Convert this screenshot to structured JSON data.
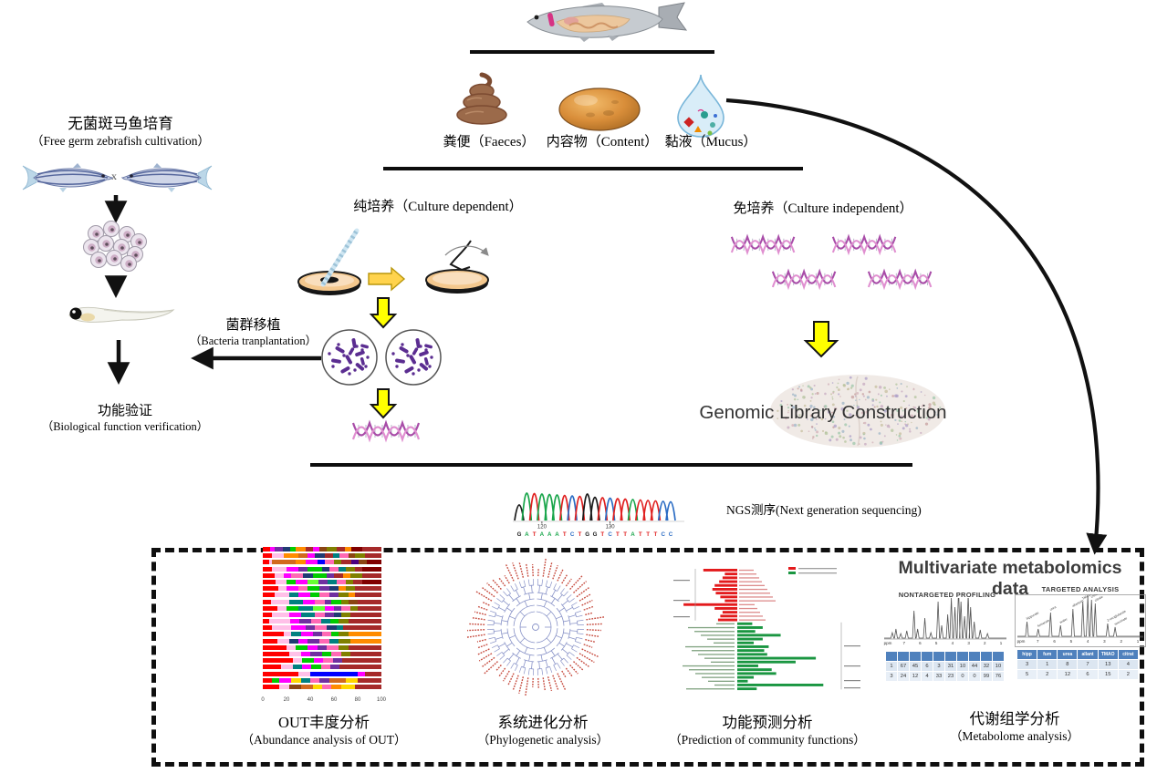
{
  "top": {
    "samples": [
      {
        "label": "粪便（Faeces）"
      },
      {
        "label": "内容物（Content）"
      },
      {
        "label": "黏液（Mucus）"
      }
    ]
  },
  "left_flow": {
    "title_cn": "无菌斑马鱼培育",
    "title_en": "（Free germ zebrafish cultivation）",
    "cross": "x",
    "transplant_cn": "菌群移植",
    "transplant_en": "（Bacteria tranplantation）",
    "verify_cn": "功能验证",
    "verify_en": "（Biological function verification）"
  },
  "culture_dependent": {
    "label": "纯培养（Culture dependent）"
  },
  "culture_independent": {
    "label": "免培养（Culture independent）",
    "library_label": "Genomic Library Construction"
  },
  "ngs": {
    "label": "NGS测序(Next generation  sequencing)",
    "sequence": "GATAAATCTGGTCTTATTTCC",
    "base_colors": {
      "G": "#1a1a1a",
      "A": "#18a54a",
      "T": "#e02020",
      "C": "#2b6cc4"
    },
    "ticks": [
      {
        "label": "120",
        "index": 3
      },
      {
        "label": "130",
        "index": 12
      }
    ]
  },
  "analysis_panels": [
    {
      "title_cn": "OUT丰度分析",
      "title_en": "（Abundance analysis of OUT）"
    },
    {
      "title_cn": "系统进化分析",
      "title_en": "（Phylogenetic analysis）"
    },
    {
      "title_cn": "功能预测分析",
      "title_en": "（Prediction of community functions）"
    },
    {
      "title_cn": "代谢组学分析",
      "title_en": "（Metabolome analysis）"
    }
  ],
  "metabolomics": {
    "title": "Multivariate metabolomics data",
    "nontargeted_title": "NONTARGETED PROFILING",
    "targeted_title": "TARGETED ANALYSIS"
  },
  "chart_data": [
    {
      "id": "otu_abundance",
      "type": "bar",
      "orientation": "horizontal",
      "stacked": true,
      "xticks": [
        0,
        20,
        40,
        60,
        80,
        100
      ],
      "palette": [
        "#ff0000",
        "#ffc0e8",
        "#ff00ff",
        "#00cc00",
        "#0000ff",
        "#008080",
        "#ff8c00",
        "#8b4513",
        "#a52a2a",
        "#7030a0",
        "#ffd700",
        "#00cccc",
        "#808000",
        "#1f3b73",
        "#800000",
        "#66ff33",
        "#ff69b4",
        "#4b0082",
        "#d2691e",
        "#2e8b57"
      ],
      "rows": [
        [
          [
            6,
            0
          ],
          [
            4,
            2
          ],
          [
            7,
            9
          ],
          [
            6,
            13
          ],
          [
            5,
            3
          ],
          [
            8,
            6
          ],
          [
            6,
            8
          ],
          [
            6,
            2
          ],
          [
            6,
            7
          ],
          [
            8,
            12
          ],
          [
            7,
            8
          ],
          [
            6,
            6
          ],
          [
            9,
            14
          ],
          [
            16,
            8
          ]
        ],
        [
          [
            8,
            0
          ],
          [
            10,
            1
          ],
          [
            12,
            6
          ],
          [
            8,
            18
          ],
          [
            6,
            2
          ],
          [
            8,
            13
          ],
          [
            7,
            8
          ],
          [
            6,
            5
          ],
          [
            7,
            16
          ],
          [
            6,
            7
          ],
          [
            8,
            12
          ],
          [
            14,
            8
          ]
        ],
        [
          [
            5,
            0
          ],
          [
            3,
            1
          ],
          [
            20,
            18
          ],
          [
            8,
            6
          ],
          [
            10,
            2
          ],
          [
            6,
            4
          ],
          [
            8,
            16
          ],
          [
            6,
            12
          ],
          [
            9,
            8
          ],
          [
            6,
            17
          ],
          [
            7,
            7
          ],
          [
            12,
            14
          ]
        ],
        [
          [
            8,
            0
          ],
          [
            12,
            1
          ],
          [
            10,
            2
          ],
          [
            8,
            9
          ],
          [
            12,
            3
          ],
          [
            6,
            13
          ],
          [
            8,
            16
          ],
          [
            6,
            5
          ],
          [
            8,
            12
          ],
          [
            6,
            8
          ],
          [
            16,
            14
          ]
        ],
        [
          [
            10,
            0
          ],
          [
            8,
            1
          ],
          [
            6,
            2
          ],
          [
            10,
            16
          ],
          [
            8,
            13
          ],
          [
            12,
            3
          ],
          [
            6,
            9
          ],
          [
            8,
            8
          ],
          [
            6,
            6
          ],
          [
            10,
            12
          ],
          [
            16,
            8
          ]
        ],
        [
          [
            11,
            0
          ],
          [
            9,
            1
          ],
          [
            8,
            3
          ],
          [
            10,
            2
          ],
          [
            9,
            15
          ],
          [
            8,
            9
          ],
          [
            7,
            5
          ],
          [
            8,
            16
          ],
          [
            6,
            12
          ],
          [
            8,
            8
          ],
          [
            16,
            14
          ]
        ],
        [
          [
            13,
            0
          ],
          [
            7,
            1
          ],
          [
            10,
            2
          ],
          [
            8,
            16
          ],
          [
            10,
            3
          ],
          [
            8,
            9
          ],
          [
            8,
            13
          ],
          [
            6,
            6
          ],
          [
            8,
            12
          ],
          [
            22,
            8
          ]
        ],
        [
          [
            10,
            0
          ],
          [
            12,
            1
          ],
          [
            8,
            5
          ],
          [
            10,
            2
          ],
          [
            8,
            3
          ],
          [
            8,
            16
          ],
          [
            8,
            9
          ],
          [
            8,
            12
          ],
          [
            6,
            6
          ],
          [
            22,
            8
          ]
        ],
        [
          [
            7,
            0
          ],
          [
            15,
            1
          ],
          [
            12,
            5
          ],
          [
            10,
            2
          ],
          [
            8,
            16
          ],
          [
            6,
            9
          ],
          [
            8,
            3
          ],
          [
            6,
            12
          ],
          [
            8,
            7
          ],
          [
            20,
            8
          ]
        ],
        [
          [
            12,
            0
          ],
          [
            8,
            1
          ],
          [
            10,
            3
          ],
          [
            12,
            5
          ],
          [
            10,
            15
          ],
          [
            8,
            2
          ],
          [
            6,
            9
          ],
          [
            8,
            16
          ],
          [
            6,
            12
          ],
          [
            20,
            8
          ]
        ],
        [
          [
            8,
            0
          ],
          [
            14,
            1
          ],
          [
            10,
            2
          ],
          [
            12,
            5
          ],
          [
            8,
            16
          ],
          [
            8,
            9
          ],
          [
            6,
            13
          ],
          [
            8,
            12
          ],
          [
            26,
            8
          ]
        ],
        [
          [
            5,
            0
          ],
          [
            18,
            1
          ],
          [
            8,
            2
          ],
          [
            10,
            9
          ],
          [
            8,
            16
          ],
          [
            8,
            5
          ],
          [
            7,
            3
          ],
          [
            8,
            12
          ],
          [
            28,
            8
          ]
        ],
        [
          [
            8,
            0
          ],
          [
            16,
            1
          ],
          [
            12,
            2
          ],
          [
            8,
            9
          ],
          [
            10,
            16
          ],
          [
            8,
            13
          ],
          [
            6,
            5
          ],
          [
            32,
            8
          ]
        ],
        [
          [
            18,
            0
          ],
          [
            6,
            1
          ],
          [
            8,
            5
          ],
          [
            10,
            2
          ],
          [
            8,
            9
          ],
          [
            8,
            16
          ],
          [
            6,
            3
          ],
          [
            8,
            12
          ],
          [
            28,
            6
          ]
        ],
        [
          [
            12,
            0
          ],
          [
            10,
            1
          ],
          [
            8,
            13
          ],
          [
            8,
            2
          ],
          [
            10,
            9
          ],
          [
            8,
            16
          ],
          [
            8,
            5
          ],
          [
            10,
            12
          ],
          [
            26,
            6
          ]
        ],
        [
          [
            20,
            0
          ],
          [
            8,
            1
          ],
          [
            10,
            3
          ],
          [
            8,
            2
          ],
          [
            8,
            9
          ],
          [
            10,
            16
          ],
          [
            8,
            12
          ],
          [
            28,
            8
          ]
        ],
        [
          [
            22,
            0
          ],
          [
            10,
            1
          ],
          [
            8,
            2
          ],
          [
            10,
            9
          ],
          [
            8,
            3
          ],
          [
            8,
            16
          ],
          [
            8,
            12
          ],
          [
            26,
            8
          ]
        ],
        [
          [
            25,
            0
          ],
          [
            8,
            1
          ],
          [
            10,
            3
          ],
          [
            8,
            2
          ],
          [
            8,
            16
          ],
          [
            8,
            9
          ],
          [
            33,
            8
          ]
        ],
        [
          [
            15,
            0
          ],
          [
            10,
            1
          ],
          [
            8,
            5
          ],
          [
            8,
            2
          ],
          [
            8,
            3
          ],
          [
            8,
            16
          ],
          [
            8,
            9
          ],
          [
            35,
            8
          ]
        ],
        [
          [
            30,
            0
          ],
          [
            10,
            1
          ],
          [
            40,
            4
          ],
          [
            6,
            2
          ],
          [
            14,
            8
          ]
        ],
        [
          [
            8,
            0
          ],
          [
            6,
            3
          ],
          [
            10,
            2
          ],
          [
            8,
            10
          ],
          [
            8,
            5
          ],
          [
            8,
            16
          ],
          [
            8,
            9
          ],
          [
            14,
            18
          ],
          [
            10,
            10
          ],
          [
            20,
            8
          ]
        ],
        [
          [
            14,
            0
          ],
          [
            8,
            1
          ],
          [
            10,
            7
          ],
          [
            10,
            18
          ],
          [
            8,
            10
          ],
          [
            8,
            16
          ],
          [
            8,
            6
          ],
          [
            12,
            10
          ],
          [
            22,
            8
          ]
        ]
      ]
    },
    {
      "id": "phylogenetic_tree",
      "type": "dendrogram",
      "layout": "circular",
      "leaves": 64,
      "line_color": "#8a94c8",
      "label_color": "#c0392b"
    },
    {
      "id": "function_prediction",
      "type": "bar",
      "orientation": "horizontal",
      "series": [
        {
          "name": "enriched",
          "color": "#e31a1c",
          "values": [
            60,
            22,
            26,
            32,
            40,
            44,
            38,
            30,
            22,
            95,
            40,
            26,
            30,
            34
          ]
        },
        {
          "name": "depleted",
          "color": "#1a9641",
          "values": [
            20,
            34,
            24,
            58,
            34,
            22,
            42,
            36,
            40,
            105,
            78,
            28,
            46,
            52,
            22,
            14,
            115,
            26
          ]
        }
      ],
      "legend": [
        {
          "color": "#e31a1c"
        },
        {
          "color": "#1a9641"
        }
      ]
    },
    {
      "id": "nontargeted_nmr",
      "type": "line",
      "axis": [
        "ppm",
        "7",
        "6",
        "5",
        "4",
        "3",
        "2",
        "1"
      ],
      "peaks": [
        [
          6,
          6
        ],
        [
          9,
          10
        ],
        [
          13,
          5
        ],
        [
          18,
          8
        ],
        [
          24,
          30
        ],
        [
          27,
          10
        ],
        [
          33,
          22
        ],
        [
          38,
          6
        ],
        [
          44,
          40
        ],
        [
          47,
          14
        ],
        [
          52,
          26
        ],
        [
          55,
          44
        ],
        [
          58,
          34
        ],
        [
          61,
          56
        ],
        [
          63,
          40
        ],
        [
          66,
          24
        ],
        [
          69,
          48
        ],
        [
          71,
          34
        ],
        [
          74,
          18
        ],
        [
          79,
          9
        ],
        [
          85,
          5
        ]
      ],
      "table": {
        "header_cols": 10,
        "rows": [
          [
            "1",
            "67",
            "45",
            "6",
            "3",
            "31",
            "10",
            "44",
            "32",
            "10"
          ],
          [
            "3",
            "24",
            "12",
            "4",
            "33",
            "23",
            "0",
            "0",
            "99",
            "76"
          ]
        ]
      }
    },
    {
      "id": "targeted_nmr",
      "type": "line",
      "axis": [
        "ppm",
        "7",
        "6",
        "5",
        "4",
        "3",
        "2",
        "1"
      ],
      "peaks": [
        [
          7,
          16,
          "hippurate"
        ],
        [
          16,
          8,
          "fumarate"
        ],
        [
          26,
          26,
          "urea"
        ],
        [
          34,
          12,
          "water"
        ],
        [
          44,
          30,
          "allantoin"
        ],
        [
          52,
          38,
          "TMAO"
        ],
        [
          56,
          44,
          "hippurate"
        ],
        [
          59,
          40,
          "creatinine"
        ],
        [
          62,
          36,
          "citrate"
        ],
        [
          72,
          14,
          "2-oxoglutarate"
        ],
        [
          78,
          10,
          "succinate"
        ]
      ],
      "table": {
        "headers": [
          "hipp",
          "fum",
          "urea",
          "allant",
          "TMAO",
          "citrat"
        ],
        "rows": [
          [
            "3",
            "1",
            "8",
            "7",
            "13",
            "4"
          ],
          [
            "5",
            "2",
            "12",
            "6",
            "15",
            "2"
          ]
        ]
      }
    }
  ]
}
